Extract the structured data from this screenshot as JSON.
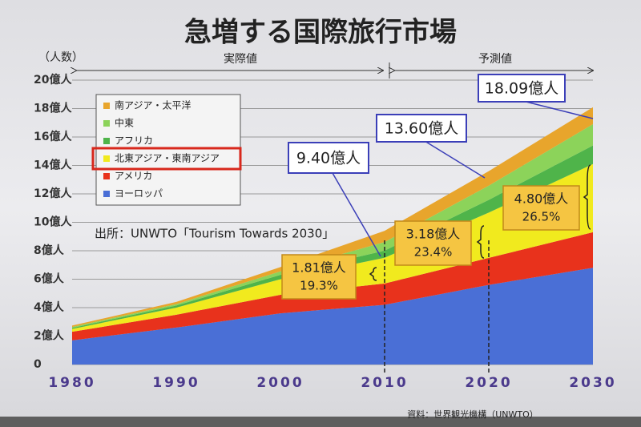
{
  "chart_data": {
    "type": "stacked-area",
    "title": "急増する国際旅行市場",
    "y_label": "（人数）",
    "period_labels": [
      "実際値",
      "予測値"
    ],
    "source_note": "出所：UNWTO「Tourism Towards 2030」",
    "footer_note": "資料：世界観光機構（UNWTO）",
    "x": [
      1980,
      1990,
      2000,
      2010,
      2020,
      2030
    ],
    "xlim": [
      1980,
      2030
    ],
    "xticks": [
      1980,
      1990,
      2000,
      2010,
      2020,
      2030
    ],
    "ylim": [
      0,
      20
    ],
    "yticks": [
      0,
      {
        "value": 2,
        "label": "2億人"
      },
      {
        "value": 4,
        "label": "4億人"
      },
      {
        "value": 6,
        "label": "6億人"
      },
      {
        "value": 8,
        "label": "8億人"
      },
      {
        "value": 10,
        "label": "10億人"
      },
      {
        "value": 12,
        "label": "12億人"
      },
      {
        "value": 14,
        "label": "14億人"
      },
      {
        "value": 16,
        "label": "16億人"
      },
      {
        "value": 18,
        "label": "18億人"
      },
      {
        "value": 20,
        "label": "20億人"
      }
    ],
    "grid": true,
    "legend_highlight": 2,
    "series": [
      {
        "name": "ヨーロッパ",
        "color": "#4a6fd6",
        "values": [
          1.7,
          2.6,
          3.6,
          4.2,
          5.6,
          6.8
        ]
      },
      {
        "name": "アメリカ",
        "color": "#e8321c",
        "values": [
          0.6,
          0.9,
          1.3,
          1.5,
          1.9,
          2.5
        ]
      },
      {
        "name": "北東アジア・東南アジア",
        "color": "#f1ea1e",
        "values": [
          0.2,
          0.5,
          1.1,
          1.81,
          3.18,
          4.8
        ]
      },
      {
        "name": "アフリカ",
        "color": "#4fb44a",
        "values": [
          0.07,
          0.15,
          0.3,
          0.5,
          0.9,
          1.3
        ]
      },
      {
        "name": "中東",
        "color": "#8cd35a",
        "values": [
          0.07,
          0.1,
          0.25,
          0.6,
          1.0,
          1.5
        ]
      },
      {
        "name": "南アジア・太平洋",
        "color": "#e8a52c",
        "values": [
          0.1,
          0.15,
          0.3,
          0.79,
          1.02,
          1.19
        ]
      }
    ],
    "total_labels": [
      "9.40億人",
      "13.60億人",
      "18.09億人"
    ],
    "region_labels": [
      {
        "amount": "1.81億人",
        "share": "19.3%"
      },
      {
        "amount": "3.18億人",
        "share": "23.4%"
      },
      {
        "amount": "4.80億人",
        "share": "26.5%"
      }
    ]
  }
}
